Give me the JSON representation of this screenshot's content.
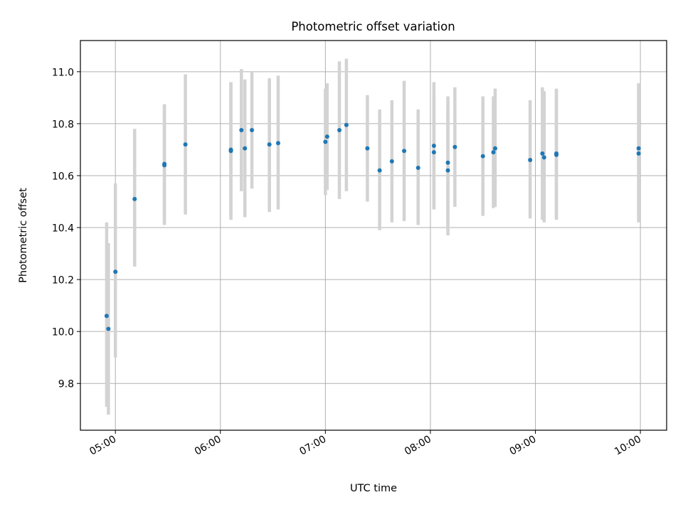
{
  "chart_data": {
    "type": "scatter",
    "title": "Photometric offset variation",
    "xlabel": "UTC time",
    "ylabel": "Photometric offset",
    "x_unit": "UTC",
    "xlim": [
      "04:40",
      "10:15"
    ],
    "ylim": [
      9.62,
      11.12
    ],
    "x_ticks": [
      "05:00",
      "06:00",
      "07:00",
      "08:00",
      "09:00",
      "10:00"
    ],
    "y_ticks": [
      9.8,
      10.0,
      10.2,
      10.4,
      10.6,
      10.8,
      11.0
    ],
    "grid": true,
    "colors": {
      "marker": "#1f77b4",
      "errorbar": "#d3d3d3",
      "grid": "#b0b0b0"
    },
    "points": [
      {
        "x": "04:55",
        "y": 10.06,
        "ylow": 9.71,
        "yhigh": 10.42
      },
      {
        "x": "04:56",
        "y": 10.01,
        "ylow": 9.68,
        "yhigh": 10.34
      },
      {
        "x": "05:00",
        "y": 10.23,
        "ylow": 9.9,
        "yhigh": 10.57
      },
      {
        "x": "05:11",
        "y": 10.51,
        "ylow": 10.25,
        "yhigh": 10.78
      },
      {
        "x": "05:28",
        "y": 10.64,
        "ylow": 10.41,
        "yhigh": 10.87
      },
      {
        "x": "05:28",
        "y": 10.645,
        "ylow": 10.42,
        "yhigh": 10.875
      },
      {
        "x": "05:40",
        "y": 10.72,
        "ylow": 10.45,
        "yhigh": 10.99
      },
      {
        "x": "06:06",
        "y": 10.695,
        "ylow": 10.43,
        "yhigh": 10.96
      },
      {
        "x": "06:06",
        "y": 10.7,
        "ylow": 10.44,
        "yhigh": 10.96
      },
      {
        "x": "06:12",
        "y": 10.775,
        "ylow": 10.54,
        "yhigh": 11.01
      },
      {
        "x": "06:14",
        "y": 10.705,
        "ylow": 10.44,
        "yhigh": 10.97
      },
      {
        "x": "06:18",
        "y": 10.775,
        "ylow": 10.55,
        "yhigh": 11.0
      },
      {
        "x": "06:28",
        "y": 10.72,
        "ylow": 10.46,
        "yhigh": 10.975
      },
      {
        "x": "06:33",
        "y": 10.725,
        "ylow": 10.47,
        "yhigh": 10.985
      },
      {
        "x": "07:00",
        "y": 10.73,
        "ylow": 10.525,
        "yhigh": 10.935
      },
      {
        "x": "07:01",
        "y": 10.75,
        "ylow": 10.545,
        "yhigh": 10.955
      },
      {
        "x": "07:08",
        "y": 10.775,
        "ylow": 10.51,
        "yhigh": 11.04
      },
      {
        "x": "07:12",
        "y": 10.795,
        "ylow": 10.54,
        "yhigh": 11.05
      },
      {
        "x": "07:24",
        "y": 10.705,
        "ylow": 10.5,
        "yhigh": 10.91
      },
      {
        "x": "07:31",
        "y": 10.62,
        "ylow": 10.39,
        "yhigh": 10.855
      },
      {
        "x": "07:38",
        "y": 10.655,
        "ylow": 10.42,
        "yhigh": 10.89
      },
      {
        "x": "07:45",
        "y": 10.695,
        "ylow": 10.425,
        "yhigh": 10.965
      },
      {
        "x": "07:53",
        "y": 10.63,
        "ylow": 10.41,
        "yhigh": 10.855
      },
      {
        "x": "08:02",
        "y": 10.69,
        "ylow": 10.47,
        "yhigh": 10.91
      },
      {
        "x": "08:02",
        "y": 10.715,
        "ylow": 10.48,
        "yhigh": 10.96
      },
      {
        "x": "08:10",
        "y": 10.65,
        "ylow": 10.4,
        "yhigh": 10.905
      },
      {
        "x": "08:10",
        "y": 10.62,
        "ylow": 10.37,
        "yhigh": 10.87
      },
      {
        "x": "08:14",
        "y": 10.71,
        "ylow": 10.48,
        "yhigh": 10.94
      },
      {
        "x": "08:30",
        "y": 10.675,
        "ylow": 10.445,
        "yhigh": 10.905
      },
      {
        "x": "08:36",
        "y": 10.69,
        "ylow": 10.475,
        "yhigh": 10.905
      },
      {
        "x": "08:37",
        "y": 10.705,
        "ylow": 10.48,
        "yhigh": 10.935
      },
      {
        "x": "08:57",
        "y": 10.66,
        "ylow": 10.435,
        "yhigh": 10.89
      },
      {
        "x": "09:04",
        "y": 10.685,
        "ylow": 10.43,
        "yhigh": 10.94
      },
      {
        "x": "09:05",
        "y": 10.67,
        "ylow": 10.42,
        "yhigh": 10.925
      },
      {
        "x": "09:12",
        "y": 10.685,
        "ylow": 10.435,
        "yhigh": 10.935
      },
      {
        "x": "09:12",
        "y": 10.68,
        "ylow": 10.43,
        "yhigh": 10.93
      },
      {
        "x": "09:59",
        "y": 10.705,
        "ylow": 10.45,
        "yhigh": 10.955
      },
      {
        "x": "09:59",
        "y": 10.685,
        "ylow": 10.42,
        "yhigh": 10.955
      }
    ]
  }
}
